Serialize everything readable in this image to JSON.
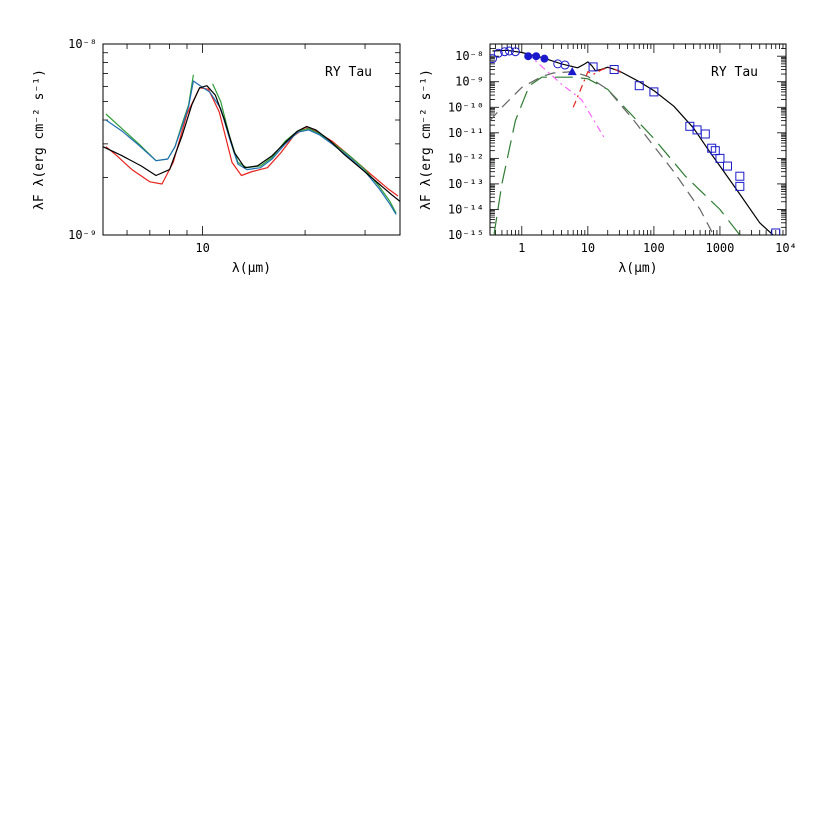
{
  "chart_data": [
    {
      "type": "line",
      "title": "RY Tau",
      "xlabel": "λ(μm)",
      "ylabel": "λF λ(erg cm⁻² s⁻¹)",
      "xscale": "log",
      "yscale": "log",
      "xlim": [
        5.1,
        38
      ],
      "ylim": [
        1e-09,
        1e-08
      ],
      "xtick_labels": [
        "10"
      ],
      "ytick_labels": [
        "10⁻⁸",
        "10⁻⁹"
      ],
      "series": [
        {
          "color": "#e8231c",
          "points": [
            [
              5.2,
              2.9e-09
            ],
            [
              5.6,
              2.6e-09
            ],
            [
              6.2,
              2.2e-09
            ],
            [
              7.0,
              1.9e-09
            ],
            [
              7.6,
              1.85e-09
            ],
            [
              8.2,
              2.4e-09
            ],
            [
              9.0,
              4.3e-09
            ],
            [
              9.8,
              5.9e-09
            ],
            [
              10.4,
              5.8e-09
            ],
            [
              11.2,
              4.4e-09
            ],
            [
              12.2,
              2.4e-09
            ],
            [
              13.0,
              2.05e-09
            ],
            [
              14.0,
              2.15e-09
            ],
            [
              15.5,
              2.25e-09
            ],
            [
              17.0,
              2.7e-09
            ],
            [
              18.5,
              3.3e-09
            ],
            [
              20.0,
              3.65e-09
            ],
            [
              21.5,
              3.5e-09
            ],
            [
              24.0,
              3.1e-09
            ],
            [
              27.0,
              2.6e-09
            ],
            [
              31.0,
              2.1e-09
            ],
            [
              35.0,
              1.75e-09
            ],
            [
              37.5,
              1.6e-09
            ]
          ]
        },
        {
          "color": "#2e9e36",
          "points": [
            [
              5.2,
              4.3e-09
            ],
            [
              5.8,
              3.6e-09
            ],
            [
              6.5,
              3e-09
            ],
            [
              7.3,
              2.45e-09
            ],
            [
              7.9,
              2.5e-09
            ],
            [
              8.3,
              2.9e-09
            ],
            [
              8.7,
              3.8e-09
            ],
            [
              9.1,
              4.8e-09
            ],
            [
              9.4,
              6.9e-09
            ]
          ]
        },
        {
          "color": "#2e9e36",
          "points": [
            [
              10.7,
              6.2e-09
            ],
            [
              11.3,
              5e-09
            ],
            [
              12.0,
              3.3e-09
            ],
            [
              12.7,
              2.4e-09
            ],
            [
              13.5,
              2.25e-09
            ],
            [
              14.8,
              2.3e-09
            ],
            [
              16.0,
              2.55e-09
            ],
            [
              17.5,
              3.1e-09
            ],
            [
              19.0,
              3.5e-09
            ],
            [
              20.5,
              3.6e-09
            ],
            [
              22.0,
              3.4e-09
            ],
            [
              24.0,
              3.05e-09
            ],
            [
              27.0,
              2.6e-09
            ],
            [
              30.0,
              2.2e-09
            ],
            [
              33.0,
              1.8e-09
            ],
            [
              35.5,
              1.5e-09
            ],
            [
              37.0,
              1.3e-09
            ]
          ]
        },
        {
          "color": "#1f6fb5",
          "points": [
            [
              5.2,
              4e-09
            ],
            [
              5.8,
              3.5e-09
            ],
            [
              6.5,
              2.95e-09
            ],
            [
              7.3,
              2.45e-09
            ],
            [
              7.9,
              2.5e-09
            ],
            [
              8.3,
              2.9e-09
            ],
            [
              8.7,
              3.7e-09
            ],
            [
              9.1,
              4.7e-09
            ],
            [
              9.4,
              6.4e-09
            ],
            [
              9.9,
              6e-09
            ],
            [
              10.5,
              5.6e-09
            ],
            [
              11.3,
              4.6e-09
            ],
            [
              12.0,
              3.2e-09
            ],
            [
              12.7,
              2.35e-09
            ],
            [
              13.5,
              2.2e-09
            ],
            [
              14.8,
              2.25e-09
            ],
            [
              16.0,
              2.5e-09
            ],
            [
              17.5,
              3e-09
            ],
            [
              19.0,
              3.45e-09
            ],
            [
              20.5,
              3.55e-09
            ],
            [
              22.0,
              3.35e-09
            ],
            [
              24.0,
              3e-09
            ],
            [
              27.0,
              2.55e-09
            ],
            [
              30.0,
              2.15e-09
            ],
            [
              33.0,
              1.75e-09
            ],
            [
              35.5,
              1.45e-09
            ],
            [
              37.0,
              1.28e-09
            ]
          ]
        },
        {
          "color": "#000000",
          "points": [
            [
              5.1,
              2.9e-09
            ],
            [
              5.8,
              2.6e-09
            ],
            [
              6.6,
              2.3e-09
            ],
            [
              7.3,
              2.05e-09
            ],
            [
              8.0,
              2.2e-09
            ],
            [
              8.7,
              3.3e-09
            ],
            [
              9.3,
              4.8e-09
            ],
            [
              9.8,
              5.9e-09
            ],
            [
              10.3,
              6.05e-09
            ],
            [
              10.9,
              5.4e-09
            ],
            [
              11.6,
              4e-09
            ],
            [
              12.4,
              2.7e-09
            ],
            [
              13.3,
              2.25e-09
            ],
            [
              14.5,
              2.3e-09
            ],
            [
              16.0,
              2.6e-09
            ],
            [
              17.5,
              3.05e-09
            ],
            [
              19.0,
              3.5e-09
            ],
            [
              20.2,
              3.7e-09
            ],
            [
              21.5,
              3.55e-09
            ],
            [
              23.5,
              3.15e-09
            ],
            [
              26.0,
              2.65e-09
            ],
            [
              29.0,
              2.25e-09
            ],
            [
              33.0,
              1.85e-09
            ],
            [
              36.0,
              1.62e-09
            ],
            [
              38.0,
              1.5e-09
            ]
          ]
        }
      ]
    },
    {
      "type": "line",
      "title": "RY Tau",
      "xlabel": "λ(μm)",
      "ylabel": "λF λ(erg cm⁻² s⁻¹)",
      "xscale": "log",
      "yscale": "log",
      "xlim": [
        0.33,
        10000
      ],
      "ylim": [
        1e-15,
        3e-08
      ],
      "xtick_labels": [
        "1",
        "10",
        "100",
        "1000",
        "10⁴"
      ],
      "ytick_labels": [
        "10⁻⁸",
        "10⁻⁹",
        "10⁻¹⁰",
        "10⁻¹¹",
        "10⁻¹²",
        "10⁻¹³",
        "10⁻¹⁴",
        "10⁻¹⁵"
      ],
      "series": [
        {
          "style": "solid",
          "color": "#000000",
          "points": [
            [
              0.36,
              1.6e-08
            ],
            [
              0.6,
              1.7e-08
            ],
            [
              1.0,
              1.4e-08
            ],
            [
              2.0,
              9e-09
            ],
            [
              4.0,
              5e-09
            ],
            [
              7.0,
              3.5e-09
            ],
            [
              9.0,
              5e-09
            ],
            [
              10.0,
              6e-09
            ],
            [
              11.5,
              4.2e-09
            ],
            [
              13.0,
              2.7e-09
            ],
            [
              16.0,
              3e-09
            ],
            [
              20.0,
              3.7e-09
            ],
            [
              30.0,
              2.6e-09
            ],
            [
              60.0,
              1e-09
            ],
            [
              100.0,
              4.5e-10
            ],
            [
              200.0,
              1.1e-10
            ],
            [
              400.0,
              1.5e-11
            ],
            [
              700.0,
              1.8e-12
            ],
            [
              1000.0,
              5e-13
            ],
            [
              2000.0,
              4e-14
            ],
            [
              4000.0,
              3e-15
            ],
            [
              7000.0,
              8e-16
            ]
          ]
        },
        {
          "style": "dash-dot",
          "color": "#ff66ff",
          "points": [
            [
              1.2,
              1.3e-08
            ],
            [
              2.0,
              4e-09
            ],
            [
              4.0,
              8e-10
            ],
            [
              8.0,
              2e-10
            ],
            [
              18.0,
              6e-12
            ]
          ]
        },
        {
          "style": "long-dash",
          "color": "#2e7d32",
          "points": [
            [
              0.33,
              1e-16
            ],
            [
              0.5,
              1e-13
            ],
            [
              0.8,
              3e-11
            ],
            [
              1.3,
              7e-10
            ],
            [
              2.0,
              1.5e-09
            ],
            [
              3.0,
              1.5e-09
            ],
            [
              6.0,
              1.5e-09
            ],
            [
              10.0,
              1.3e-09
            ],
            [
              20.0,
              5e-10
            ],
            [
              50.0,
              4e-11
            ],
            [
              100.0,
              6e-12
            ],
            [
              300.0,
              2e-13
            ],
            [
              1000.0,
              1e-14
            ],
            [
              2000.0,
              1e-15
            ]
          ]
        },
        {
          "style": "dashed",
          "color": "#666666",
          "points": [
            [
              0.33,
              3e-11
            ],
            [
              0.5,
              1e-10
            ],
            [
              1.0,
              6e-10
            ],
            [
              2.0,
              1.6e-09
            ],
            [
              3.0,
              2.2e-09
            ],
            [
              6.0,
              2.5e-09
            ],
            [
              10.0,
              1.6e-09
            ],
            [
              20.0,
              5e-10
            ],
            [
              50.0,
              3e-11
            ],
            [
              100.0,
              3e-12
            ],
            [
              200.0,
              3e-13
            ],
            [
              500.0,
              1e-14
            ],
            [
              800.0,
              1e-15
            ]
          ]
        },
        {
          "style": "dash-dot",
          "color": "#e8231c",
          "points": [
            [
              6.0,
              1e-10
            ],
            [
              8.0,
              6e-10
            ],
            [
              10.0,
              2.5e-09
            ],
            [
              12.0,
              1.9e-09
            ],
            [
              16.0,
              2.9e-09
            ],
            [
              20.0,
              3.6e-09
            ],
            [
              26.0,
              3e-09
            ],
            [
              35.0,
              2e-09
            ]
          ]
        }
      ],
      "markers": [
        {
          "shape": "circle-open",
          "color": "#1a1acc",
          "points": [
            [
              0.36,
              8e-09
            ],
            [
              0.44,
              1.3e-08
            ],
            [
              0.55,
              1.5e-08
            ],
            [
              0.65,
              1.6e-08
            ],
            [
              0.8,
              1.5e-08
            ],
            [
              3.5,
              5e-09
            ],
            [
              4.5,
              4.5e-09
            ]
          ]
        },
        {
          "shape": "circle-filled",
          "color": "#1a1acc",
          "points": [
            [
              1.25,
              1e-08
            ],
            [
              1.65,
              1e-08
            ],
            [
              2.2,
              8e-09
            ]
          ]
        },
        {
          "shape": "triangle-filled",
          "color": "#1a1acc",
          "points": [
            [
              5.8,
              2.5e-09
            ]
          ]
        },
        {
          "shape": "square-open",
          "color": "#1a1acc",
          "points": [
            [
              12.0,
              3.8e-09
            ],
            [
              25.0,
              3e-09
            ],
            [
              60.0,
              7e-10
            ],
            [
              100.0,
              4e-10
            ],
            [
              350.0,
              1.8e-11
            ],
            [
              450.0,
              1.3e-11
            ],
            [
              600.0,
              9e-12
            ],
            [
              750.0,
              2.5e-12
            ],
            [
              850.0,
              2e-12
            ],
            [
              1000.0,
              1e-12
            ],
            [
              1300.0,
              5e-13
            ],
            [
              2000.0,
              2e-13
            ],
            [
              2000.0,
              8e-14
            ],
            [
              7000.0,
              1.2e-15
            ]
          ]
        }
      ]
    }
  ]
}
